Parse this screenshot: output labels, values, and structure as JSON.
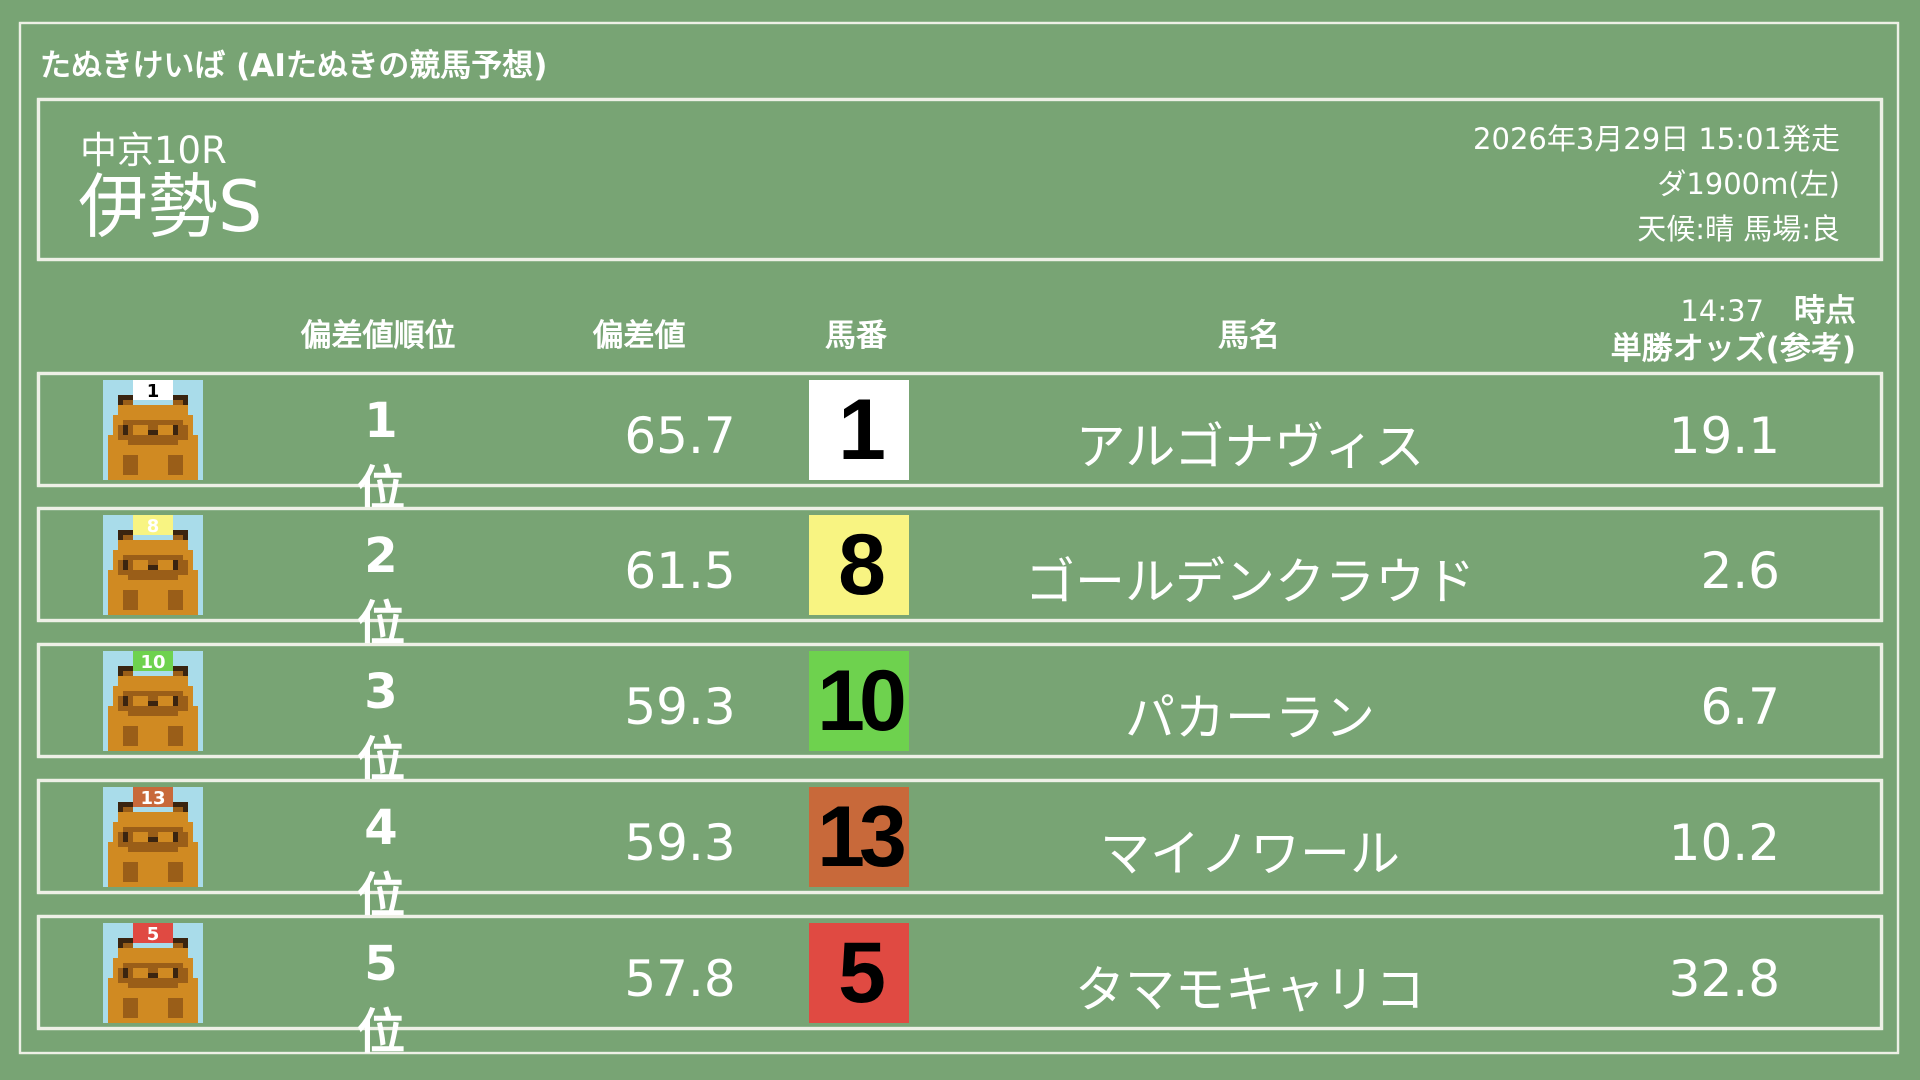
{
  "app_title": "たぬきけいば (AIたぬきの競馬予想)",
  "race": {
    "venue_round": "中京10R",
    "name": "伊勢S",
    "start": "2026年3月29日 15:01発走",
    "course": "ダ1900m(左)",
    "conditions": "天候:晴 馬場:良"
  },
  "headers": {
    "rank": "偏差値順位",
    "score": "偏差値",
    "number": "馬番",
    "horse": "馬名",
    "odds_time": "14:37",
    "odds_time_suffix": "時点",
    "odds": "単勝オッズ(参考)"
  },
  "colors": {
    "background": "#78a474",
    "chalk": "#eef0e6",
    "tanuki_body": "#d08a22",
    "tanuki_dark": "#9a5e18",
    "icon_bg": "#a9dcea"
  },
  "rows": [
    {
      "rank": "1位",
      "score": "65.7",
      "number": "1",
      "horse": "アルゴナヴィス",
      "odds": "19.1",
      "box_color": "#ffffff",
      "cap_text": "1"
    },
    {
      "rank": "2位",
      "score": "61.5",
      "number": "8",
      "horse": "ゴールデンクラウド",
      "odds": "2.6",
      "box_color": "#f8f482",
      "cap_text": "8"
    },
    {
      "rank": "3位",
      "score": "59.3",
      "number": "10",
      "horse": "パカーラン",
      "odds": "6.7",
      "box_color": "#6ed24e",
      "cap_text": "10"
    },
    {
      "rank": "4位",
      "score": "59.3",
      "number": "13",
      "horse": "マイノワール",
      "odds": "10.2",
      "box_color": "#c8693a",
      "cap_text": "13"
    },
    {
      "rank": "5位",
      "score": "57.8",
      "number": "5",
      "horse": "タマモキャリコ",
      "odds": "32.8",
      "box_color": "#e04a42",
      "cap_text": "5"
    }
  ]
}
